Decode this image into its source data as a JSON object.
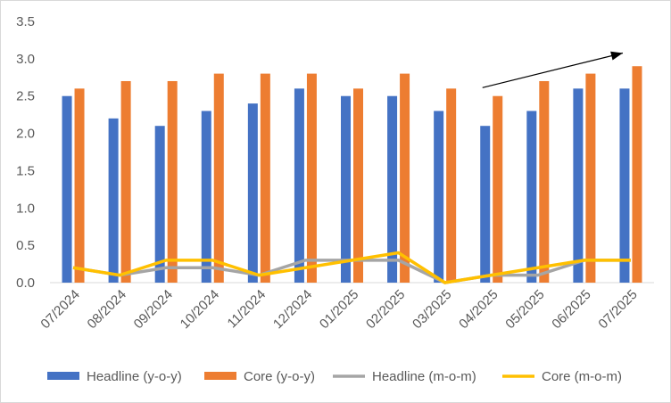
{
  "chart_data": {
    "type": "bar",
    "title": "",
    "xlabel": "",
    "ylabel": "",
    "ylim": [
      0,
      3.5
    ],
    "ytick_step": 0.5,
    "grid": true,
    "legend_position": "bottom",
    "categories": [
      "07/2024",
      "08/2024",
      "09/2024",
      "10/2024",
      "11/2024",
      "12/2024",
      "01/2025",
      "02/2025",
      "03/2025",
      "04/2025",
      "05/2025",
      "06/2025",
      "07/2025"
    ],
    "series": [
      {
        "name": "Headline (y-o-y)",
        "kind": "bar",
        "color": "#4472C4",
        "values": [
          2.5,
          2.2,
          2.1,
          2.3,
          2.4,
          2.6,
          2.5,
          2.5,
          2.3,
          2.1,
          2.3,
          2.6,
          2.6
        ]
      },
      {
        "name": "Core (y-o-y)",
        "kind": "bar",
        "color": "#ED7D31",
        "values": [
          2.6,
          2.7,
          2.7,
          2.8,
          2.8,
          2.8,
          2.6,
          2.8,
          2.6,
          2.5,
          2.7,
          2.8,
          2.9
        ]
      },
      {
        "name": "Headline (m-o-m)",
        "kind": "line",
        "color": "#A5A5A5",
        "values": [
          0.2,
          0.1,
          0.2,
          0.2,
          0.1,
          0.3,
          0.3,
          0.3,
          0.0,
          0.1,
          0.1,
          0.3,
          0.3
        ]
      },
      {
        "name": "Core (m-o-m)",
        "kind": "line",
        "color": "#FFC000",
        "values": [
          0.2,
          0.1,
          0.3,
          0.3,
          0.1,
          0.2,
          0.3,
          0.4,
          0.0,
          0.1,
          0.2,
          0.3,
          0.3
        ]
      }
    ],
    "annotations": [
      {
        "type": "arrow",
        "description": "upward trend arrow",
        "from": {
          "x": "04/2025",
          "y": 2.6
        },
        "to": {
          "x": "07/2025",
          "y": 3.1
        }
      }
    ]
  }
}
